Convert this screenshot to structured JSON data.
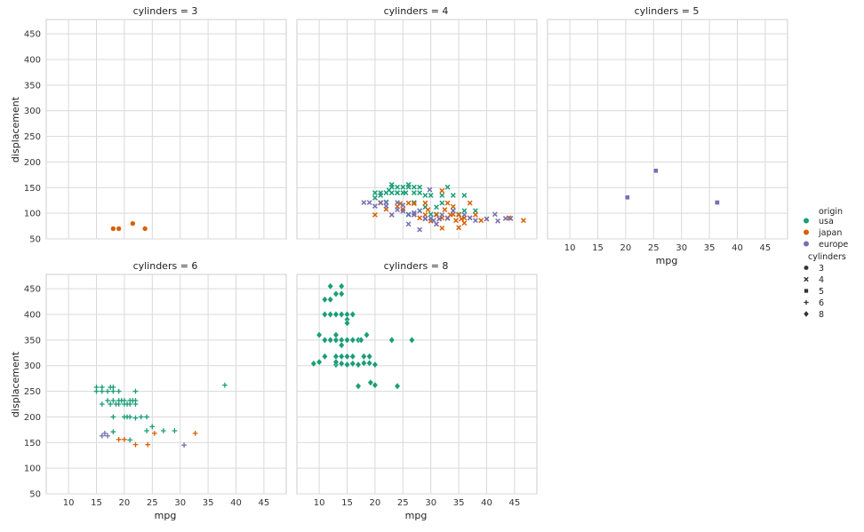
{
  "chart_data": {
    "type": "scatter",
    "xlabel": "mpg",
    "ylabel": "displacement",
    "xlim": [
      6,
      49
    ],
    "ylim": [
      50,
      478
    ],
    "xticks": [
      10,
      15,
      20,
      25,
      30,
      35,
      40,
      45
    ],
    "yticks": [
      50,
      100,
      150,
      200,
      250,
      300,
      350,
      400,
      450
    ],
    "grid": true,
    "legend_placement": "right",
    "hue_colors": {
      "usa": "#1b9e77",
      "japan": "#d95f02",
      "europe": "#7570b3"
    },
    "style_markers": {
      "3": "circle",
      "4": "x",
      "5": "square",
      "6": "plus",
      "8": "diamond"
    },
    "legend": {
      "hue_title": "origin",
      "hue_items": [
        "usa",
        "japan",
        "europe"
      ],
      "style_title": "cylinders",
      "style_items": [
        "3",
        "4",
        "5",
        "6",
        "8"
      ]
    },
    "panels": [
      {
        "title": "cylinders = 3",
        "marker": "3",
        "series": [
          {
            "name": "japan",
            "points": [
              [
                18.0,
                70
              ],
              [
                19.0,
                70
              ],
              [
                21.5,
                80
              ],
              [
                23.7,
                70
              ]
            ]
          }
        ]
      },
      {
        "title": "cylinders = 4",
        "marker": "4",
        "series": [
          {
            "name": "usa",
            "points": [
              [
                20,
                140
              ],
              [
                21,
                140
              ],
              [
                22,
                140
              ],
              [
                23,
                151
              ],
              [
                24,
                140
              ],
              [
                25,
                140
              ],
              [
                26,
                151
              ],
              [
                27,
                151
              ],
              [
                28,
                140
              ],
              [
                29,
                135
              ],
              [
                30,
                135
              ],
              [
                20,
                130
              ],
              [
                22,
                122
              ],
              [
                23,
                156
              ],
              [
                24,
                151
              ],
              [
                25,
                151
              ],
              [
                26,
                156
              ],
              [
                27,
                140
              ],
              [
                28,
                151
              ],
              [
                29,
                112
              ],
              [
                31,
                112
              ],
              [
                32,
                135
              ],
              [
                33,
                151
              ],
              [
                34,
                135
              ],
              [
                35,
                98
              ],
              [
                36,
                135
              ],
              [
                26,
                98
              ],
              [
                27,
                121
              ],
              [
                28,
                105
              ],
              [
                30,
                98
              ],
              [
                31,
                98
              ],
              [
                32,
                120
              ],
              [
                34,
                105
              ],
              [
                36,
                105
              ],
              [
                38,
                105
              ],
              [
                24,
                140
              ],
              [
                25.5,
                140
              ],
              [
                23,
                140
              ],
              [
                21,
                135
              ],
              [
                22.5,
                145
              ]
            ]
          },
          {
            "name": "japan",
            "points": [
              [
                20,
                97
              ],
              [
                21,
                120
              ],
              [
                22,
                108
              ],
              [
                23,
                97
              ],
              [
                24,
                113
              ],
              [
                25,
                108
              ],
              [
                26,
                120
              ],
              [
                27,
                97
              ],
              [
                28,
                91
              ],
              [
                29,
                97
              ],
              [
                30,
                85
              ],
              [
                31,
                97
              ],
              [
                32,
                91
              ],
              [
                33,
                91
              ],
              [
                34,
                98
              ],
              [
                35,
                97
              ],
              [
                36,
                91
              ],
              [
                37,
                91
              ],
              [
                38,
                97
              ],
              [
                39,
                86
              ],
              [
                40,
                89
              ],
              [
                44,
                91
              ],
              [
                46.6,
                86
              ],
              [
                31.5,
                89
              ],
              [
                32.5,
                107
              ],
              [
                33.5,
                97
              ],
              [
                34.5,
                86
              ],
              [
                35.5,
                89
              ],
              [
                32,
                144
              ],
              [
                29,
                120
              ],
              [
                27,
                119
              ],
              [
                37,
                120
              ],
              [
                33,
                120
              ],
              [
                24.5,
                119
              ],
              [
                31,
                79
              ],
              [
                32,
                71
              ],
              [
                35,
                72
              ],
              [
                36,
                81
              ],
              [
                29.5,
                107
              ],
              [
                34,
                113
              ]
            ]
          },
          {
            "name": "europe",
            "points": [
              [
                18,
                121
              ],
              [
                19,
                121
              ],
              [
                20,
                114
              ],
              [
                21,
                121
              ],
              [
                22,
                121
              ],
              [
                23,
                97
              ],
              [
                24,
                107
              ],
              [
                25,
                116
              ],
              [
                26,
                97
              ],
              [
                27,
                101
              ],
              [
                28,
                68
              ],
              [
                29,
                89
              ],
              [
                30,
                90
              ],
              [
                31,
                79
              ],
              [
                32,
                97
              ],
              [
                33,
                90
              ],
              [
                34,
                105
              ],
              [
                36,
                97
              ],
              [
                41.5,
                98
              ],
              [
                43.4,
                90
              ],
              [
                44.3,
                90
              ],
              [
                40,
                89
              ],
              [
                29.8,
                146
              ],
              [
                26,
                79
              ],
              [
                25,
                104
              ],
              [
                29,
                90
              ],
              [
                27,
                97
              ],
              [
                24,
                121
              ],
              [
                22,
                114
              ],
              [
                28,
                105
              ],
              [
                31.5,
                89
              ],
              [
                30.5,
                86
              ],
              [
                37,
                91
              ],
              [
                38,
                86
              ],
              [
                42,
                85
              ]
            ]
          }
        ]
      },
      {
        "title": "cylinders = 5",
        "marker": "5",
        "series": [
          {
            "name": "europe",
            "points": [
              [
                20.3,
                131
              ],
              [
                25.4,
                183
              ],
              [
                36.4,
                121
              ]
            ]
          }
        ]
      },
      {
        "title": "cylinders = 6",
        "marker": "6",
        "series": [
          {
            "name": "usa",
            "points": [
              [
                15,
                250
              ],
              [
                15,
                258
              ],
              [
                16,
                250
              ],
              [
                16,
                258
              ],
              [
                17,
                250
              ],
              [
                17.5,
                258
              ],
              [
                18,
                258
              ],
              [
                18,
                250
              ],
              [
                19,
                250
              ],
              [
                16,
                225
              ],
              [
                17,
                232
              ],
              [
                17.5,
                225
              ],
              [
                18,
                232
              ],
              [
                18.5,
                225
              ],
              [
                19,
                232
              ],
              [
                19,
                225
              ],
              [
                19.5,
                232
              ],
              [
                20,
                225
              ],
              [
                20,
                232
              ],
              [
                20.5,
                225
              ],
              [
                21,
                232
              ],
              [
                21,
                225
              ],
              [
                21.5,
                232
              ],
              [
                22,
                225
              ],
              [
                22,
                232
              ],
              [
                22,
                250
              ],
              [
                18,
                200
              ],
              [
                20,
                200
              ],
              [
                20.5,
                200
              ],
              [
                21,
                200
              ],
              [
                22,
                198
              ],
              [
                23,
                200
              ],
              [
                24,
                200
              ],
              [
                25,
                181
              ],
              [
                27,
                173
              ],
              [
                24,
                173
              ],
              [
                29,
                173
              ],
              [
                18,
                171
              ],
              [
                38,
                262
              ],
              [
                21,
                155
              ]
            ]
          },
          {
            "name": "japan",
            "points": [
              [
                19,
                156
              ],
              [
                20,
                156
              ],
              [
                22,
                146
              ],
              [
                24.2,
                146
              ],
              [
                25.4,
                168
              ],
              [
                32.7,
                168
              ]
            ]
          },
          {
            "name": "europe",
            "points": [
              [
                16,
                163
              ],
              [
                16.5,
                168
              ],
              [
                17,
                163
              ],
              [
                30.7,
                145
              ]
            ]
          }
        ]
      },
      {
        "title": "cylinders = 8",
        "marker": "8",
        "series": [
          {
            "name": "usa",
            "points": [
              [
                9,
                304
              ],
              [
                10,
                307
              ],
              [
                10,
                360
              ],
              [
                11,
                318
              ],
              [
                11,
                350
              ],
              [
                11,
                400
              ],
              [
                11,
                429
              ],
              [
                12,
                455
              ],
              [
                12,
                429
              ],
              [
                12,
                400
              ],
              [
                12,
                350
              ],
              [
                13,
                440
              ],
              [
                13,
                400
              ],
              [
                13,
                350
              ],
              [
                13,
                318
              ],
              [
                13,
                302
              ],
              [
                13,
                360
              ],
              [
                14,
                455
              ],
              [
                14,
                440
              ],
              [
                14,
                400
              ],
              [
                14,
                350
              ],
              [
                14,
                318
              ],
              [
                14,
                304
              ],
              [
                14,
                340
              ],
              [
                15,
                400
              ],
              [
                15,
                390
              ],
              [
                15,
                383
              ],
              [
                15,
                350
              ],
              [
                15,
                318
              ],
              [
                15,
                302
              ],
              [
                16,
                400
              ],
              [
                16,
                350
              ],
              [
                16,
                318
              ],
              [
                16,
                304
              ],
              [
                17,
                350
              ],
              [
                17,
                302
              ],
              [
                17.5,
                350
              ],
              [
                17,
                260
              ],
              [
                18,
                318
              ],
              [
                18,
                305
              ],
              [
                18.5,
                360
              ],
              [
                19,
                318
              ],
              [
                19,
                305
              ],
              [
                19.2,
                267
              ],
              [
                20,
                262
              ],
              [
                20,
                302
              ],
              [
                23,
                350
              ],
              [
                24,
                260
              ],
              [
                26.6,
                350
              ],
              [
                13,
                307
              ]
            ]
          }
        ]
      }
    ]
  }
}
